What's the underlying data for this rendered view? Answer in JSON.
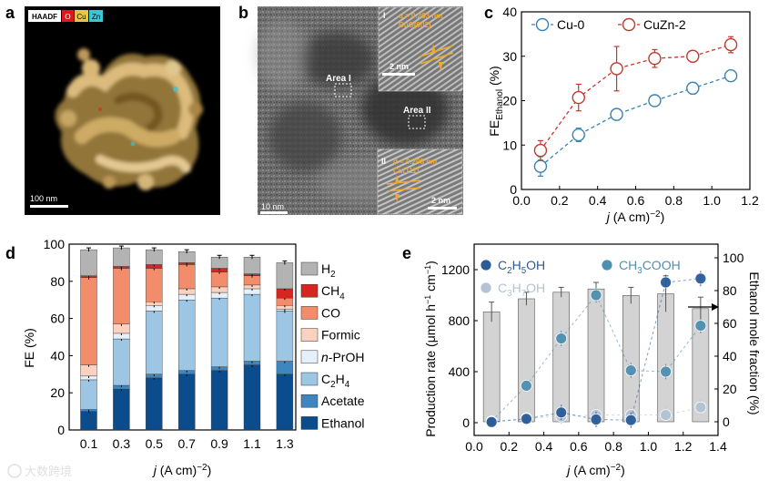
{
  "panel_letters": [
    "a",
    "b",
    "c",
    "d",
    "e"
  ],
  "panel_a": {
    "legend": [
      "HAADF",
      "O",
      "Cu",
      "Zn"
    ],
    "legend_colors": [
      "#ffffff",
      "#e4161d",
      "#e6c64a",
      "#39c6d6"
    ],
    "scalebar": "100 nm"
  },
  "panel_b": {
    "area1": "Area I",
    "area2": "Area II",
    "scalebar": "10 nm",
    "inset1": {
      "roman": "I",
      "line1": "d = 0.263 nm",
      "line2": "CuO(002)",
      "scale": "2 nm"
    },
    "inset2": {
      "roman": "II",
      "line1": "d = 0.208 nm",
      "line2": "Cu(111)",
      "scale": "2 nm"
    }
  },
  "chart_data": [
    {
      "type": "line",
      "panel": "c",
      "xlabel": "j (A cm⁻²)",
      "ylabel": "FE_Ethanol (%)",
      "xlim": [
        0.0,
        1.2
      ],
      "ylim": [
        0,
        40
      ],
      "xticks": [
        "0.0",
        "0.2",
        "0.4",
        "0.6",
        "0.8",
        "1.0",
        "1.2"
      ],
      "yticks": [
        "0",
        "10",
        "20",
        "30",
        "40"
      ],
      "x": [
        0.1,
        0.3,
        0.5,
        0.7,
        0.9,
        1.1
      ],
      "series": [
        {
          "name": "Cu-0",
          "color": "#3a82b4",
          "values": [
            5.2,
            12.3,
            16.9,
            20.0,
            22.8,
            25.6
          ],
          "errors": [
            2.2,
            1.5,
            1.2,
            1.2,
            1.3,
            1.2
          ]
        },
        {
          "name": "CuZn-2",
          "color": "#c0392b",
          "values": [
            8.8,
            20.7,
            27.2,
            29.5,
            30.0,
            32.6
          ],
          "errors": [
            2.2,
            3.0,
            5.0,
            2.0,
            1.2,
            1.8
          ]
        }
      ]
    },
    {
      "type": "bar",
      "panel": "d",
      "stacked": true,
      "xlabel": "j (A cm⁻²)",
      "ylabel": "FE (%)",
      "ylim": [
        0,
        100
      ],
      "yticks": [
        "0",
        "20",
        "40",
        "60",
        "80",
        "100"
      ],
      "categories": [
        "0.1",
        "0.3",
        "0.5",
        "0.7",
        "0.9",
        "1.1",
        "1.3"
      ],
      "legend_order": [
        "H2",
        "CH4",
        "CO",
        "Formic",
        "n-PrOH",
        "C2H4",
        "Acetate",
        "Ethanol"
      ],
      "series": [
        {
          "name": "Ethanol",
          "color": "#0b4d8c",
          "values": [
            10,
            22,
            28,
            30,
            32,
            35,
            30
          ]
        },
        {
          "name": "Acetate",
          "color": "#3f86c0",
          "values": [
            1,
            2,
            2,
            2,
            2,
            2,
            7
          ]
        },
        {
          "name": "C2H4",
          "color": "#9cc6e4",
          "values": [
            16,
            25,
            34,
            38,
            37,
            36,
            27
          ]
        },
        {
          "name": "n-PrOH",
          "color": "#e6f0fa",
          "values": [
            2,
            3,
            3,
            3,
            3,
            3,
            1
          ]
        },
        {
          "name": "Formic",
          "color": "#fbd1bf",
          "values": [
            6,
            5,
            2,
            3,
            3,
            2,
            2
          ]
        },
        {
          "name": "CO",
          "color": "#f38c6b",
          "values": [
            47,
            30,
            18,
            13,
            8,
            5,
            4
          ]
        },
        {
          "name": "CH4",
          "color": "#d6261f",
          "values": [
            1,
            1,
            2,
            1,
            2,
            1,
            5
          ]
        },
        {
          "name": "H2",
          "color": "#b3b3b3",
          "values": [
            14,
            10,
            8,
            6,
            6,
            9,
            14
          ]
        }
      ]
    },
    {
      "type": "bar",
      "panel": "e",
      "xlabel": "j (A cm⁻²)",
      "ylabel": "Production rate (μmol h⁻¹ cm⁻¹)",
      "y2label": "Ethanol mole fraction (%)",
      "xlim": [
        0.0,
        1.4
      ],
      "ylim": [
        -100,
        1400
      ],
      "y2lim": [
        -8.33,
        108.33
      ],
      "xticks": [
        "0.0",
        "0.2",
        "0.4",
        "0.6",
        "0.8",
        "1.0",
        "1.2",
        "1.4"
      ],
      "yticks": [
        "0",
        "400",
        "800",
        "1200"
      ],
      "y2ticks": [
        "0",
        "20",
        "40",
        "60",
        "80",
        "100"
      ],
      "x": [
        0.1,
        0.3,
        0.5,
        0.7,
        0.9,
        1.1,
        1.3
      ],
      "mole_fraction": {
        "values": [
          67,
          75,
          79,
          81,
          77,
          78,
          69
        ],
        "errors": [
          6,
          4,
          3,
          4,
          5,
          11,
          7
        ]
      },
      "series": [
        {
          "name": "C2H5OH",
          "color": "#2a5c9a",
          "values": [
            5,
            30,
            80,
            25,
            20,
            1100,
            1130
          ],
          "errors": [
            30,
            40,
            60,
            60,
            60,
            60,
            60
          ]
        },
        {
          "name": "CH3COOH",
          "color": "#4f8fb0",
          "values": [
            10,
            290,
            660,
            1000,
            410,
            400,
            760
          ],
          "errors": [
            30,
            40,
            60,
            60,
            60,
            60,
            60
          ]
        },
        {
          "name": "C3H7OH",
          "color": "#b3c3d4",
          "values": [
            10,
            35,
            50,
            60,
            60,
            60,
            120
          ],
          "errors": [
            30,
            40,
            60,
            60,
            60,
            60,
            60
          ]
        }
      ]
    }
  ],
  "watermark": "大数跨境"
}
